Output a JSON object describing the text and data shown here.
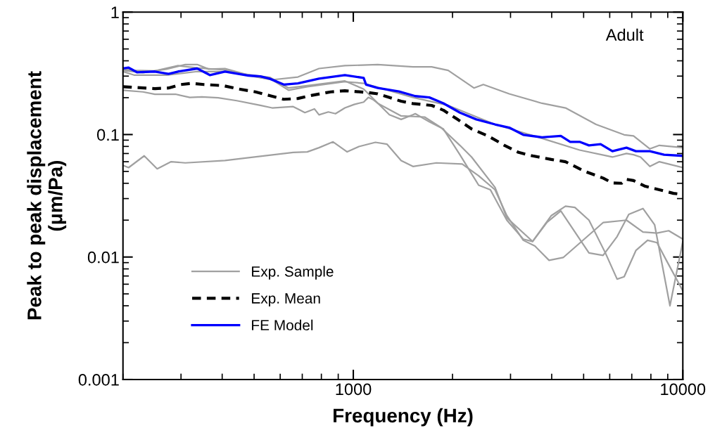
{
  "chart_data": {
    "type": "line",
    "xlabel": "Frequency (Hz)",
    "ylabel": "Peak to peak displacement\n(μm/Pa)",
    "log": "xy",
    "xlim": [
      200,
      10000
    ],
    "ylim": [
      0.001,
      1
    ],
    "xticks": [
      1000,
      10000
    ],
    "yticks": [
      0.001,
      0.01,
      0.1,
      1
    ],
    "grid": false,
    "legend": "lower left",
    "marker": "none",
    "annotations": [
      "Adult"
    ],
    "series": [
      {
        "name": "Exp. Sample",
        "color": "#a0a0a0",
        "line_style": "solid",
        "x": [
          200,
          230,
          271,
          309,
          336,
          364,
          408,
          481,
          567,
          679,
          787,
          943,
          1186,
          1517,
          1729,
          1940,
          2323,
          2481,
          2972,
          3738,
          4405,
          5452,
          6637,
          7086,
          7943,
          8489,
          10000
        ],
        "values": [
          0.334,
          0.32,
          0.342,
          0.373,
          0.373,
          0.342,
          0.346,
          0.306,
          0.28,
          0.295,
          0.346,
          0.365,
          0.373,
          0.357,
          0.357,
          0.334,
          0.24,
          0.256,
          0.215,
          0.18,
          0.165,
          0.121,
          0.0995,
          0.0974,
          0.0764,
          0.0816,
          0.0781
        ]
      },
      {
        "color": "#a0a0a0",
        "line_style": "solid",
        "x": [
          200,
          216,
          250,
          294,
          336,
          408,
          481,
          567,
          636,
          725,
          943,
          1075,
          1517,
          1940,
          2692,
          3738,
          4861,
          6113,
          6745,
          7086,
          7444,
          7943,
          8489,
          10000
        ],
        "values": [
          0.342,
          0.334,
          0.331,
          0.365,
          0.35,
          0.337,
          0.303,
          0.28,
          0.23,
          0.246,
          0.27,
          0.262,
          0.201,
          0.173,
          0.121,
          0.0931,
          0.0747,
          0.0655,
          0.07,
          0.0684,
          0.0655,
          0.0549,
          0.06,
          0.0537
        ]
      },
      {
        "color": "#a0a0a0",
        "line_style": "solid",
        "x": [
          200,
          216,
          271,
          336,
          408,
          558,
          636,
          725,
          943,
          1075,
          1287,
          1397,
          1517,
          1542,
          1701,
          1877,
          2106,
          2401,
          2606,
          2923,
          3280,
          3500,
          3863,
          4263,
          5190,
          5728,
          6318,
          6855,
          7568,
          8213,
          9140,
          10000
        ],
        "values": [
          0.327,
          0.306,
          0.306,
          0.327,
          0.327,
          0.293,
          0.24,
          0.251,
          0.274,
          0.235,
          0.145,
          0.133,
          0.145,
          0.148,
          0.127,
          0.111,
          0.0684,
          0.0386,
          0.0354,
          0.02,
          0.014,
          0.0134,
          0.0191,
          0.0238,
          0.0108,
          0.0103,
          0.0147,
          0.0223,
          0.0249,
          0.0183,
          0.004,
          0.0134
        ]
      },
      {
        "color": "#a0a0a0",
        "line_style": "solid",
        "x": [
          200,
          230,
          250,
          290,
          319,
          347,
          389,
          443,
          522,
          567,
          657,
          690,
          713,
          762,
          787,
          840,
          883,
          943,
          1006,
          1075,
          1111,
          1148,
          1186,
          1397,
          1646,
          1846,
          2106,
          2286,
          2692,
          2923,
          3500,
          3990,
          4405,
          4704,
          5190,
          5821,
          6318,
          6637,
          7203,
          7817,
          8350,
          8913,
          10000
        ],
        "values": [
          0.23,
          0.223,
          0.213,
          0.213,
          0.201,
          0.203,
          0.1995,
          0.189,
          0.173,
          0.165,
          0.169,
          0.158,
          0.151,
          0.162,
          0.145,
          0.153,
          0.148,
          0.165,
          0.176,
          0.184,
          0.201,
          0.193,
          0.18,
          0.142,
          0.139,
          0.114,
          0.0816,
          0.0655,
          0.037,
          0.0209,
          0.0134,
          0.0218,
          0.026,
          0.0254,
          0.02,
          0.0108,
          0.0066,
          0.0069,
          0.0113,
          0.0137,
          0.0131,
          0.0094,
          0.0053
        ]
      },
      {
        "color": "#a0a0a0",
        "line_style": "solid",
        "x": [
          200,
          208,
          232,
          254,
          280,
          309,
          408,
          466,
          657,
          725,
          787,
          868,
          958,
          1040,
          1167,
          1266,
          1397,
          1517,
          1787,
          2140,
          2401,
          2692,
          2923,
          3280,
          3557,
          3927,
          4334,
          5728,
          6745,
          7568,
          8350,
          9060,
          10000
        ],
        "values": [
          0.0561,
          0.0537,
          0.067,
          0.0525,
          0.06,
          0.0587,
          0.0613,
          0.0641,
          0.0715,
          0.0722,
          0.0781,
          0.0872,
          0.0722,
          0.0798,
          0.0864,
          0.0834,
          0.0613,
          0.0549,
          0.0587,
          0.0574,
          0.046,
          0.0354,
          0.0218,
          0.0137,
          0.0123,
          0.0094,
          0.0099,
          0.0191,
          0.02,
          0.016,
          0.0157,
          0.0164,
          0.014
        ]
      },
      {
        "name": "Exp. Mean",
        "color": "#000000",
        "line_style": "dashed",
        "x": [
          200,
          219,
          250,
          275,
          299,
          324,
          352,
          402,
          443,
          505,
          557,
          615,
          679,
          749,
          854,
          943,
          1006,
          1111,
          1186,
          1397,
          1517,
          1729,
          1877,
          2071,
          2286,
          2564,
          2876,
          3174,
          3500,
          3990,
          4404,
          5022,
          5728,
          6111,
          6528,
          6745,
          7086,
          7692,
          8488,
          9367,
          10000
        ],
        "values": [
          0.246,
          0.242,
          0.237,
          0.24,
          0.256,
          0.262,
          0.256,
          0.251,
          0.237,
          0.223,
          0.208,
          0.194,
          0.197,
          0.209,
          0.223,
          0.228,
          0.225,
          0.22,
          0.215,
          0.187,
          0.179,
          0.173,
          0.158,
          0.133,
          0.111,
          0.0974,
          0.0816,
          0.0715,
          0.067,
          0.0626,
          0.06,
          0.0503,
          0.0441,
          0.0403,
          0.04,
          0.0431,
          0.0421,
          0.0378,
          0.0354,
          0.0331,
          0.0324
        ]
      },
      {
        "name": "FE Model",
        "color": "#0000ff",
        "line_style": "solid",
        "x": [
          200,
          208,
          221,
          250,
          275,
          294,
          336,
          367,
          408,
          481,
          522,
          557,
          615,
          679,
          787,
          943,
          1075,
          1093,
          1186,
          1375,
          1542,
          1701,
          1877,
          2106,
          2362,
          2692,
          2972,
          3280,
          3738,
          4263,
          4553,
          4861,
          5190,
          5631,
          6113,
          6745,
          7203,
          7943,
          8770,
          10000
        ],
        "values": [
          0.346,
          0.352,
          0.322,
          0.327,
          0.313,
          0.327,
          0.346,
          0.306,
          0.327,
          0.303,
          0.299,
          0.286,
          0.256,
          0.262,
          0.286,
          0.306,
          0.29,
          0.256,
          0.24,
          0.225,
          0.206,
          0.201,
          0.18,
          0.151,
          0.133,
          0.121,
          0.114,
          0.0995,
          0.095,
          0.0974,
          0.0872,
          0.0872,
          0.0816,
          0.0834,
          0.0731,
          0.0781,
          0.0731,
          0.0731,
          0.0684,
          0.067
        ]
      }
    ]
  }
}
